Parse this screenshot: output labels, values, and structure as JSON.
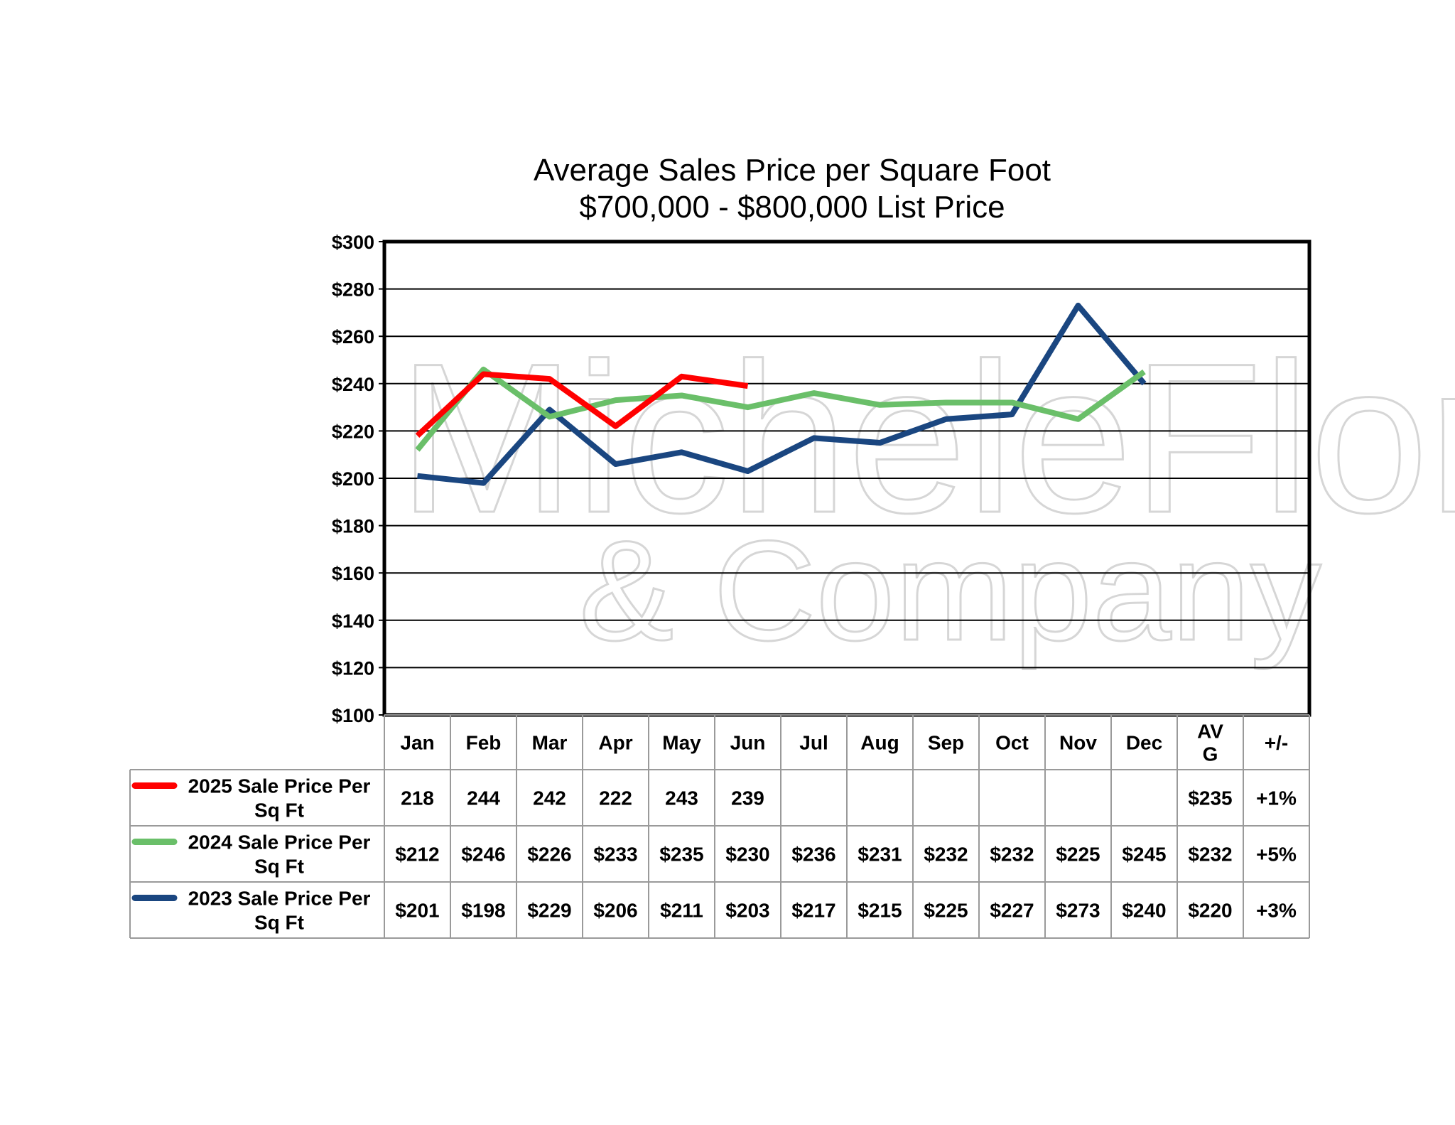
{
  "watermark": {
    "line1": "MicheleFlory",
    "line2": "& Company"
  },
  "chart_data": {
    "type": "line",
    "title": "Average Sales Price per Square Foot",
    "subtitle": "$700,000 - $800,000 List Price",
    "categories": [
      "Jan",
      "Feb",
      "Mar",
      "Apr",
      "May",
      "Jun",
      "Jul",
      "Aug",
      "Sep",
      "Oct",
      "Nov",
      "Dec"
    ],
    "ylim": [
      100,
      300
    ],
    "y_ticks": [
      "$100",
      "$120",
      "$140",
      "$160",
      "$180",
      "$200",
      "$220",
      "$240",
      "$260",
      "$280",
      "$300"
    ],
    "grid": true,
    "legend_placement": "data-table-left",
    "series": [
      {
        "name": "2025 Sale Price Per Sq Ft",
        "name_line1": "2025 Sale Price Per",
        "name_line2": "Sq Ft",
        "color": "#ff0000",
        "values": [
          218,
          244,
          242,
          222,
          243,
          239,
          null,
          null,
          null,
          null,
          null,
          null
        ],
        "table_values": [
          "218",
          "244",
          "242",
          "222",
          "243",
          "239",
          "",
          "",
          "",
          "",
          "",
          ""
        ],
        "avg": "$235",
        "change": "+1%"
      },
      {
        "name": "2024 Sale Price Per Sq Ft",
        "name_line1": "2024 Sale Price Per",
        "name_line2": "Sq Ft",
        "color": "#6abf69",
        "values": [
          212,
          246,
          226,
          233,
          235,
          230,
          236,
          231,
          232,
          232,
          225,
          245
        ],
        "table_values": [
          "$212",
          "$246",
          "$226",
          "$233",
          "$235",
          "$230",
          "$236",
          "$231",
          "$232",
          "$232",
          "$225",
          "$245"
        ],
        "avg": "$232",
        "change": "+5%"
      },
      {
        "name": "2023 Sale Price Per Sq Ft",
        "name_line1": "2023 Sale Price Per",
        "name_line2": "Sq Ft",
        "color": "#1a4680",
        "values": [
          201,
          198,
          229,
          206,
          211,
          203,
          217,
          215,
          225,
          227,
          273,
          240
        ],
        "table_values": [
          "$201",
          "$198",
          "$229",
          "$206",
          "$211",
          "$203",
          "$217",
          "$215",
          "$225",
          "$227",
          "$273",
          "$240"
        ],
        "avg": "$220",
        "change": "+3%"
      }
    ],
    "table_extra_headers": {
      "avg_line1": "AV",
      "avg_line2": "G",
      "change": "+/-"
    }
  }
}
